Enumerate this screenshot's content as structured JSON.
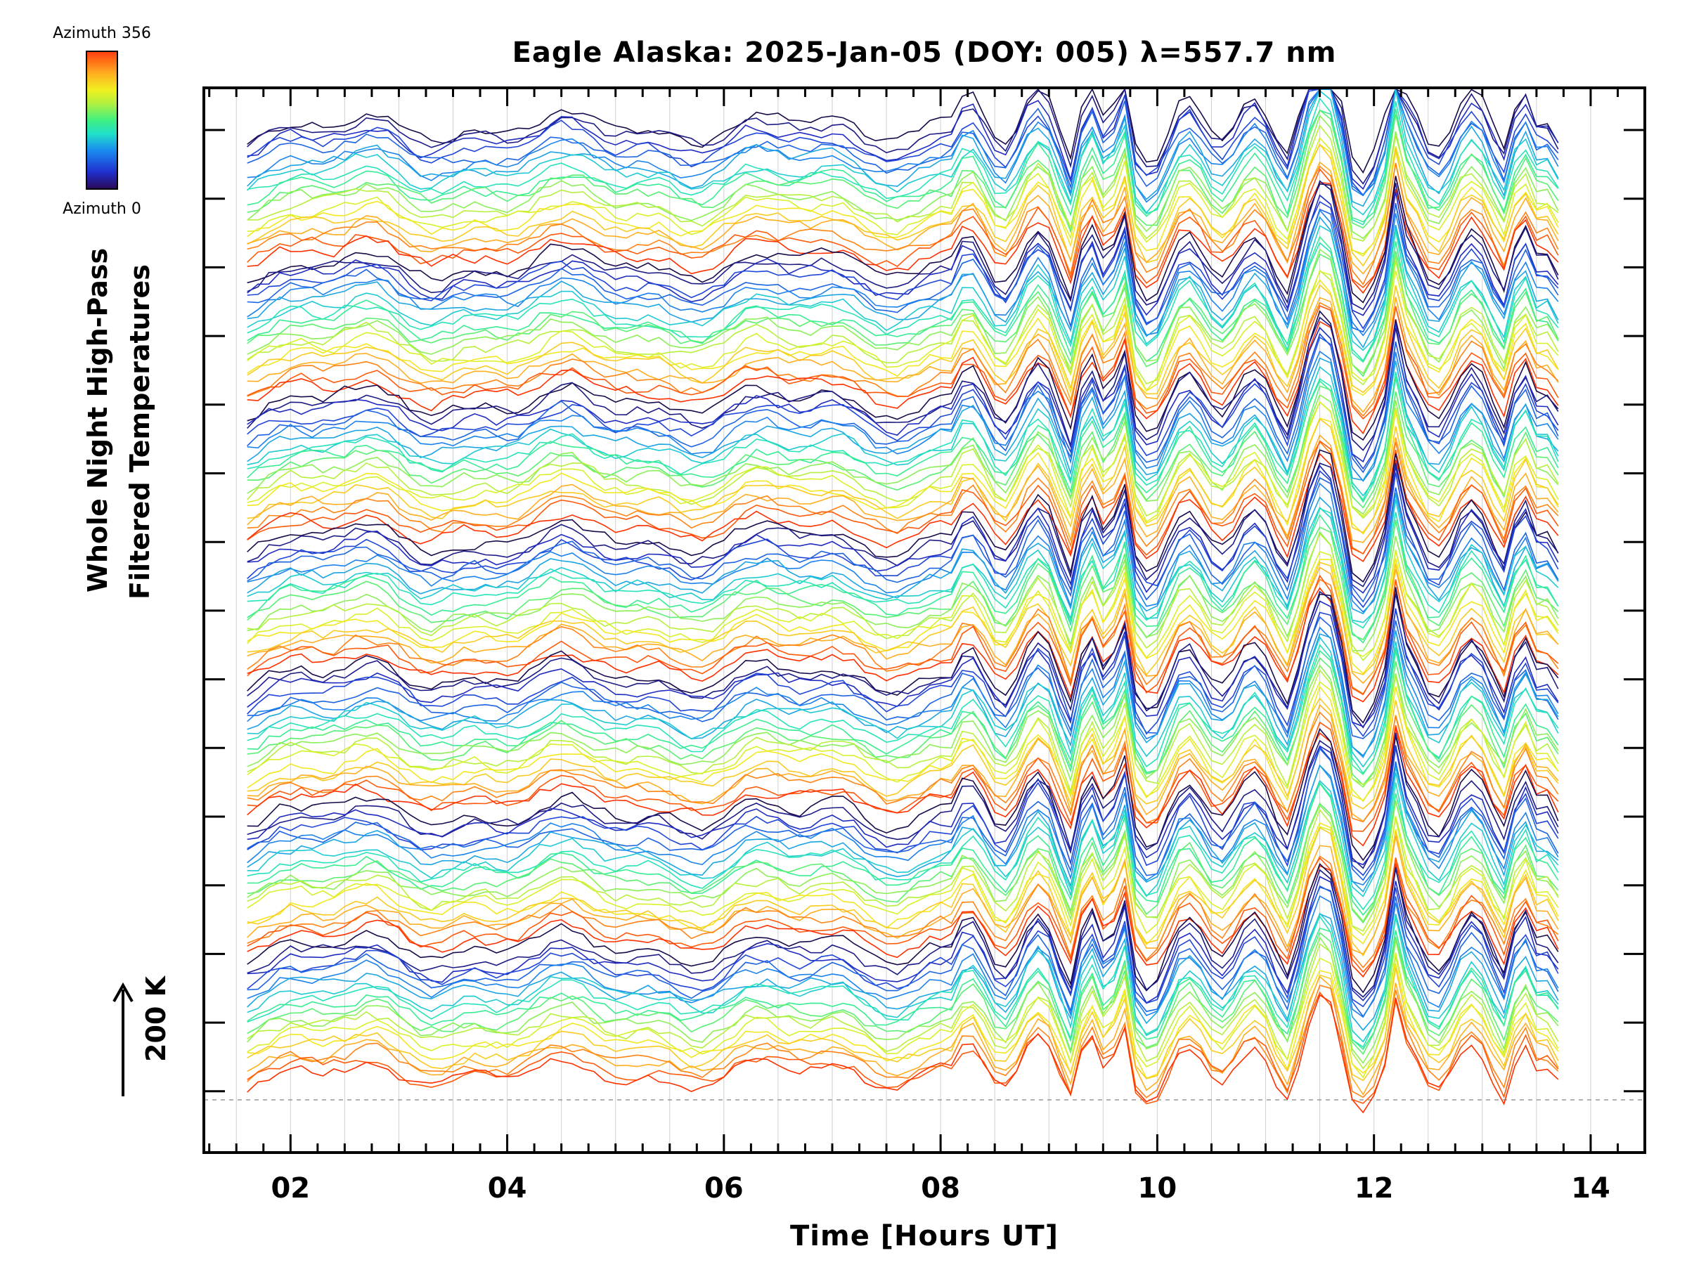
{
  "chart_data": {
    "type": "line",
    "title": "Eagle Alaska: 2025-Jan-05 (DOY: 005) λ=557.7 nm",
    "xlabel": "Time [Hours UT]",
    "ylabel_line1": "Whole Night High-Pass",
    "ylabel_line2": "Filtered Temperatures",
    "scale_bar_label": "200 K",
    "xlim": [
      1.2,
      14.5
    ],
    "x_ticks": [
      "02",
      "04",
      "06",
      "08",
      "10",
      "12",
      "14"
    ],
    "x_tick_values": [
      2,
      4,
      6,
      8,
      10,
      12,
      14
    ],
    "time_range": [
      1.6,
      13.75
    ],
    "colorbar": {
      "top_label": "Azimuth 356",
      "bottom_label": "Azimuth 0",
      "azimuth_range": [
        0,
        356
      ]
    },
    "series_groups": 7,
    "traces_per_group": 20,
    "grid": true,
    "colors": {
      "azimuth_low": "#1a0a4a",
      "azimuth_high": "#ff3000",
      "frame": "#000000",
      "gridline": "#d0d0d0"
    }
  }
}
